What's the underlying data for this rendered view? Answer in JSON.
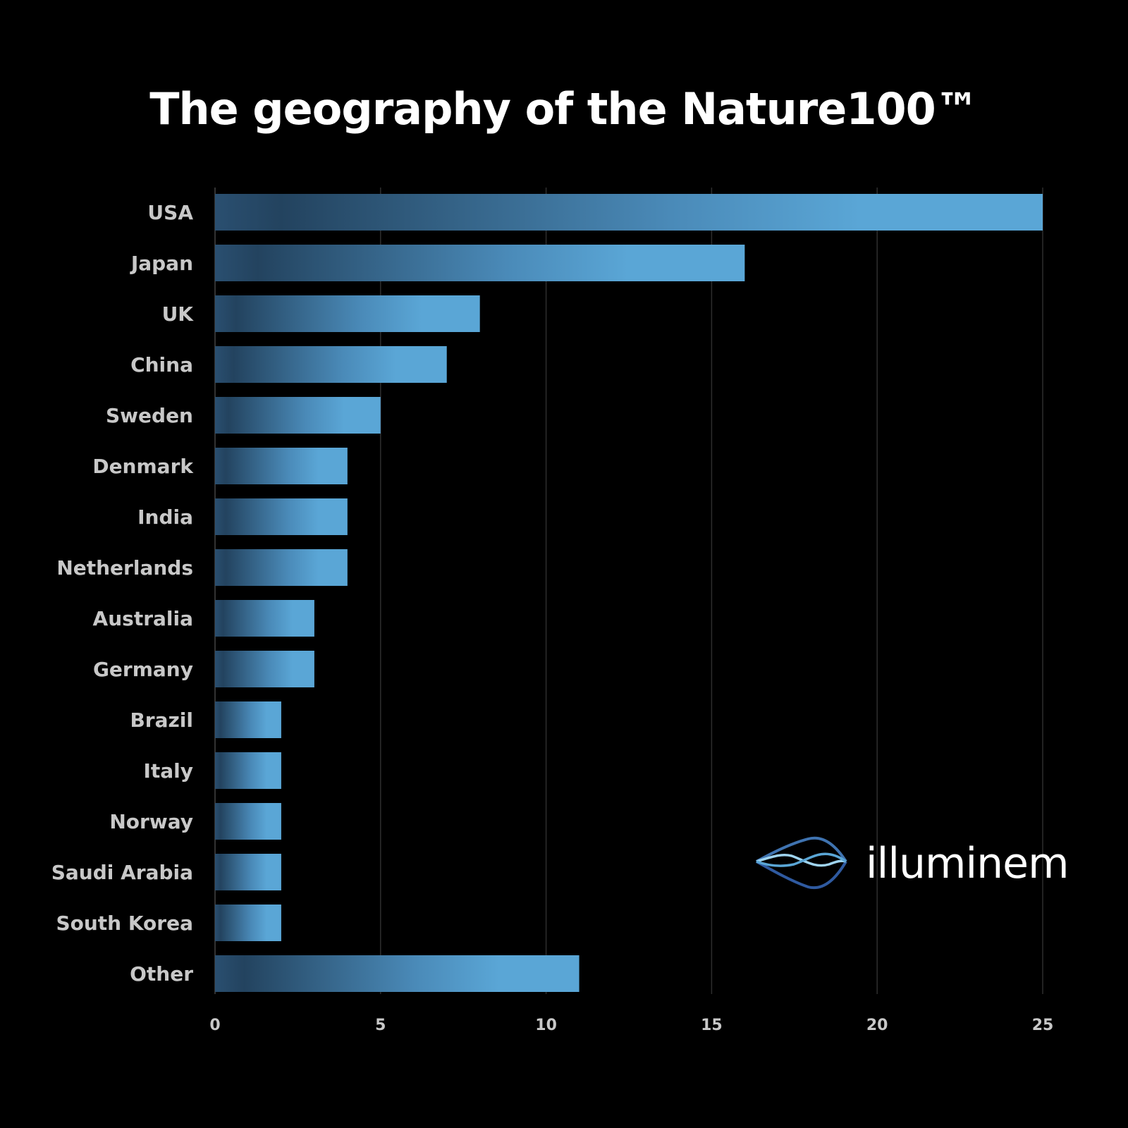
{
  "chart_data": {
    "type": "bar",
    "orientation": "horizontal",
    "title": "The geography of the Nature100™",
    "categories": [
      "USA",
      "Japan",
      "UK",
      "China",
      "Sweden",
      "Denmark",
      "India",
      "Netherlands",
      "Australia",
      "Germany",
      "Brazil",
      "Italy",
      "Norway",
      "Saudi Arabia",
      "South Korea",
      "Other"
    ],
    "values": [
      25,
      16,
      8,
      7,
      5,
      4,
      4,
      4,
      3,
      3,
      2,
      2,
      2,
      2,
      2,
      11
    ],
    "xticks": [
      "0",
      "5",
      "10",
      "15",
      "20",
      "25"
    ],
    "xlim": [
      0,
      25
    ],
    "xlabel": "",
    "ylabel": "",
    "grid": "vertical",
    "bar_color_start": "#23435f",
    "bar_color_end": "#5aa6d6"
  },
  "brand": {
    "logo_text": "illuminem",
    "logo_icon": "wave-lens-icon"
  }
}
